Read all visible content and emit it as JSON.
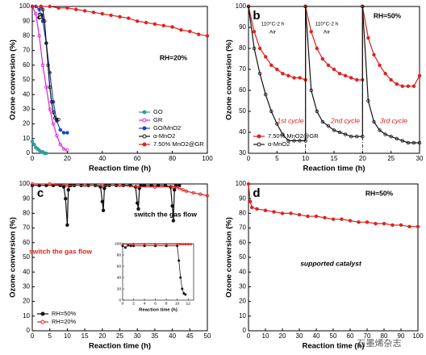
{
  "chart_data": [
    {
      "type": "line",
      "panel_label": "a",
      "xlabel": "Reaction time (h)",
      "ylabel": "Ozone conversion (%)",
      "xlim": [
        0,
        100
      ],
      "ylim": [
        0,
        100
      ],
      "xticks": [
        0,
        20,
        40,
        60,
        80,
        100
      ],
      "yticks": [
        0,
        10,
        20,
        30,
        40,
        50,
        60,
        70,
        80,
        90,
        100
      ],
      "legend": "lower right",
      "annotations": [
        {
          "text": "RH=20%",
          "color": "#000000"
        }
      ],
      "series": [
        {
          "name": "GO",
          "color": "#2a9d9d",
          "x": [
            0,
            1,
            2,
            3,
            4,
            5,
            6,
            7,
            8
          ],
          "values": [
            8,
            6,
            4,
            3,
            2,
            1,
            1,
            0,
            0
          ]
        },
        {
          "name": "GR",
          "color": "#e020e0",
          "x": [
            0,
            2,
            4,
            6,
            8,
            10,
            12,
            14,
            16,
            18,
            20
          ],
          "values": [
            100,
            95,
            80,
            60,
            45,
            30,
            20,
            12,
            6,
            3,
            2
          ]
        },
        {
          "name": "GO/MnO2",
          "color": "#1f3fd0",
          "x": [
            0,
            2,
            4,
            6,
            8,
            10,
            12,
            14,
            16,
            18,
            20
          ],
          "values": [
            100,
            100,
            98,
            90,
            75,
            55,
            35,
            22,
            16,
            14,
            14
          ]
        },
        {
          "name": "α-MnO2",
          "color": "#111111",
          "x": [
            5,
            6,
            7,
            8,
            9,
            10,
            11,
            12,
            13,
            14,
            15
          ],
          "values": [
            100,
            98,
            90,
            75,
            60,
            45,
            35,
            28,
            24,
            23,
            23
          ]
        },
        {
          "name": "7.50% MnO2@GR",
          "color": "#e02020",
          "x": [
            0,
            5,
            10,
            15,
            20,
            25,
            30,
            35,
            40,
            45,
            50,
            55,
            60,
            65,
            70,
            75,
            80,
            85,
            90,
            95,
            100
          ],
          "values": [
            100,
            100,
            100,
            99,
            99,
            98,
            97,
            96,
            95,
            94,
            93,
            92,
            90,
            89,
            88,
            87,
            86,
            84,
            83,
            81,
            80
          ]
        }
      ]
    },
    {
      "type": "line",
      "panel_label": "b",
      "xlabel": "Reaction time (h)",
      "ylabel": "Ozone conversion (%)",
      "xlim": [
        0,
        30
      ],
      "ylim": [
        30,
        100
      ],
      "xticks": [
        0,
        5,
        10,
        15,
        20,
        25,
        30
      ],
      "yticks": [
        30,
        40,
        50,
        60,
        70,
        80,
        90,
        100
      ],
      "legend": "lower left",
      "dividers": [
        10,
        20
      ],
      "annotations": [
        {
          "text": "RH=50%",
          "color": "#000000"
        },
        {
          "text": "110°C-2 h",
          "color": "#000000"
        },
        {
          "text": "Air",
          "color": "#000000"
        },
        {
          "text": "110°C-2 h",
          "color": "#000000"
        },
        {
          "text": "Air",
          "color": "#000000"
        },
        {
          "text": "1st cycle",
          "color": "#e02020"
        },
        {
          "text": "2nd cycle",
          "color": "#e02020"
        },
        {
          "text": "3rd cycle",
          "color": "#e02020"
        }
      ],
      "series": [
        {
          "name": "7.50% MnO2@GR",
          "color": "#e02020",
          "x": [
            0,
            1,
            2,
            3,
            4,
            5,
            6,
            7,
            8,
            9,
            10,
            10,
            11,
            12,
            13,
            14,
            15,
            16,
            17,
            18,
            19,
            20,
            20,
            21,
            22,
            23,
            24,
            25,
            26,
            27,
            28,
            29,
            30
          ],
          "values": [
            100,
            88,
            80,
            76,
            72,
            70,
            68,
            67,
            66,
            66,
            65,
            100,
            88,
            80,
            75,
            72,
            70,
            68,
            67,
            66,
            65,
            65,
            100,
            85,
            77,
            72,
            68,
            65,
            63,
            62,
            62,
            62,
            67
          ]
        },
        {
          "name": "α-MnO2",
          "color": "#111111",
          "x": [
            0,
            1,
            2,
            3,
            4,
            5,
            6,
            7,
            8,
            9,
            10,
            10,
            11,
            12,
            13,
            14,
            15,
            16,
            17,
            18,
            19,
            20,
            20,
            21,
            22,
            23,
            24,
            25,
            26,
            27,
            28,
            29,
            30
          ],
          "values": [
            100,
            80,
            68,
            58,
            50,
            44,
            39,
            36,
            36,
            36,
            36,
            100,
            60,
            50,
            45,
            43,
            41,
            40,
            39,
            38,
            38,
            38,
            100,
            55,
            45,
            41,
            39,
            38,
            37,
            36,
            35,
            35,
            35
          ]
        }
      ]
    },
    {
      "type": "line",
      "panel_label": "c",
      "xlabel": "Reaction time (h)",
      "ylabel": "Ozone conversion (%)",
      "xlim": [
        0,
        50
      ],
      "ylim": [
        0,
        100
      ],
      "xticks": [
        0,
        5,
        10,
        15,
        20,
        25,
        30,
        35,
        40,
        45,
        50
      ],
      "yticks": [
        0,
        10,
        20,
        30,
        40,
        50,
        60,
        70,
        80,
        90,
        100
      ],
      "legend": "lower left",
      "annotations": [
        {
          "text": "switch the gas flow",
          "color": "#e02020"
        },
        {
          "text": "switch the gas flow",
          "color": "#000000"
        }
      ],
      "series": [
        {
          "name": "RH=50%",
          "color": "#111111",
          "x": [
            0,
            2,
            4,
            6,
            8,
            9,
            9.5,
            10,
            10.3,
            10.6,
            11,
            12,
            14,
            16,
            18,
            19.5,
            20,
            20.3,
            20.6,
            21,
            22,
            24,
            26,
            28,
            29.5,
            30,
            30.3,
            30.6,
            31,
            32,
            34,
            36,
            38,
            39.5,
            40,
            40.3,
            40.6,
            41,
            42
          ],
          "values": [
            99,
            99,
            99,
            99,
            99,
            98,
            90,
            72,
            96,
            99,
            99,
            99,
            99,
            99,
            99,
            98,
            88,
            82,
            97,
            99,
            99,
            99,
            99,
            99,
            98,
            87,
            83,
            97,
            99,
            99,
            99,
            99,
            99,
            98,
            85,
            75,
            96,
            99,
            99
          ]
        },
        {
          "name": "RH=20%",
          "color": "#e02020",
          "x": [
            0,
            5,
            10,
            15,
            20,
            25,
            30,
            35,
            40,
            41,
            42,
            43,
            44,
            46,
            48,
            50
          ],
          "values": [
            100,
            100,
            99,
            99,
            99,
            99,
            98,
            98,
            98,
            98,
            97,
            96,
            95,
            94,
            93,
            92
          ]
        }
      ]
    },
    {
      "type": "line",
      "panel_label": "d",
      "xlabel": "Reaction time (h)",
      "ylabel": "Ozone conversion (%)",
      "xlim": [
        0,
        100
      ],
      "ylim": [
        0,
        100
      ],
      "xticks": [
        0,
        10,
        20,
        30,
        40,
        50,
        60,
        70,
        80,
        90,
        100
      ],
      "yticks": [
        0,
        10,
        20,
        30,
        40,
        50,
        60,
        70,
        80,
        90,
        100
      ],
      "annotations": [
        {
          "text": "RH=50%",
          "color": "#000000"
        },
        {
          "text": "supported catalyst",
          "color": "#000000"
        }
      ],
      "series": [
        {
          "color": "#e02020",
          "x": [
            0,
            1,
            2,
            5,
            10,
            15,
            20,
            25,
            30,
            35,
            40,
            45,
            50,
            55,
            60,
            65,
            70,
            75,
            80,
            85,
            90,
            95,
            100
          ],
          "values": [
            100,
            88,
            84,
            83,
            82,
            81,
            80,
            80,
            79,
            78,
            78,
            77,
            76,
            76,
            75,
            74,
            74,
            73,
            73,
            72,
            72,
            71,
            71
          ]
        }
      ]
    },
    {
      "type": "line",
      "xlabel": "Reaction time (h)",
      "xlim": [
        0,
        13
      ],
      "ylim": [
        0,
        100
      ],
      "xticks": [
        0,
        2,
        4,
        6,
        8,
        10,
        12
      ],
      "yticks": [
        0,
        20,
        40,
        60,
        80,
        100
      ],
      "series": [
        {
          "color": "#111111",
          "x": [
            0,
            0.5,
            1,
            1.5,
            2,
            4,
            6,
            8,
            10,
            10.3,
            10.6,
            10.9,
            11.2,
            11.5
          ],
          "values": [
            96,
            93,
            97,
            96,
            96,
            96,
            96,
            96,
            96,
            70,
            40,
            20,
            12,
            10
          ]
        },
        {
          "color": "#e02020",
          "x": [
            0,
            2,
            4,
            6,
            8,
            10,
            10.5,
            11,
            11.5,
            12,
            12.5
          ],
          "values": [
            99,
            99,
            99,
            99,
            99,
            99,
            99,
            99,
            99,
            99,
            99
          ]
        }
      ]
    }
  ],
  "watermark": "石墨烯杂志"
}
